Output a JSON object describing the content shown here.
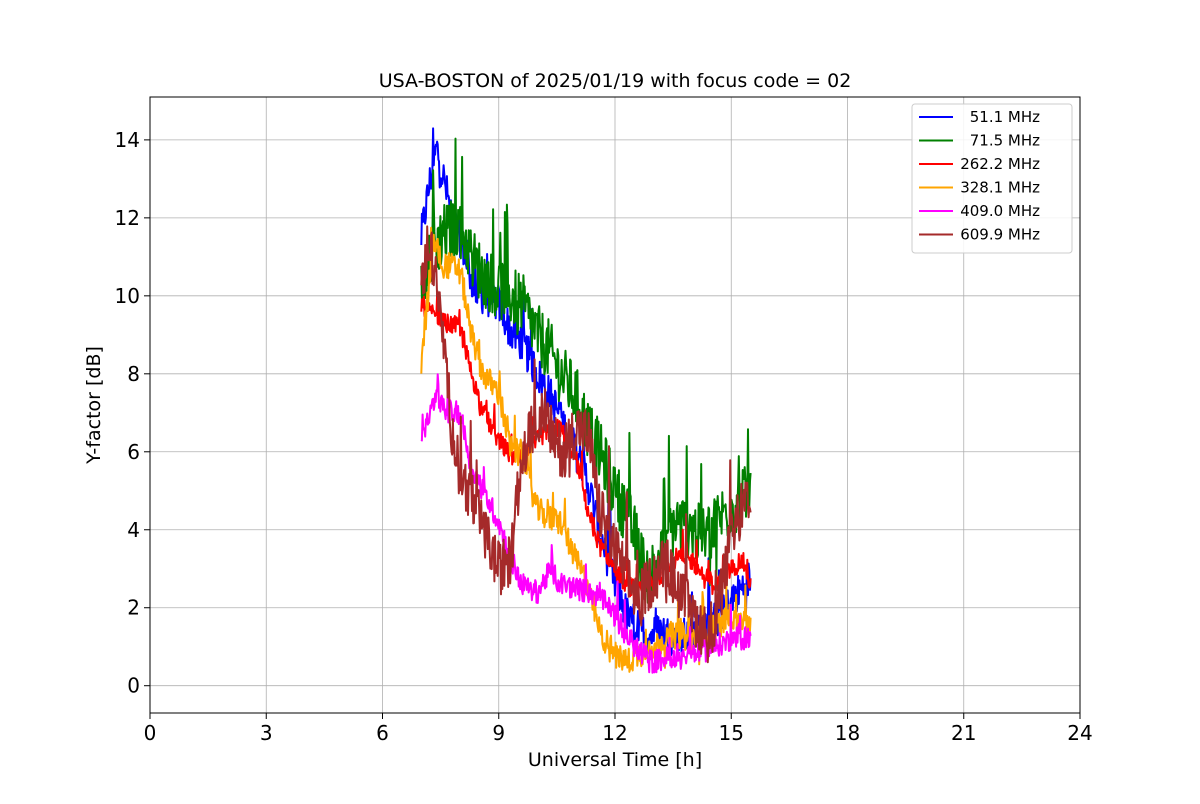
{
  "chart_data": {
    "type": "line",
    "title": "USA-BOSTON of 2025/01/19 with focus code = 02",
    "xlabel": "Universal Time [h]",
    "ylabel": "Y-factor [dB]",
    "xlim": [
      0,
      24
    ],
    "ylim": [
      -0.7,
      15.1
    ],
    "xticks": [
      0,
      3,
      6,
      9,
      12,
      15,
      18,
      21,
      24
    ],
    "yticks": [
      0,
      2,
      4,
      6,
      8,
      10,
      12,
      14
    ],
    "grid": true,
    "legend_position": "top-right",
    "series": [
      {
        "name": "51.1 MHz",
        "color": "#0000ff",
        "x": [
          7.0,
          7.2,
          7.4,
          7.6,
          7.8,
          8.0,
          8.3,
          8.6,
          9.0,
          9.3,
          9.6,
          10.0,
          10.4,
          10.8,
          11.2,
          11.6,
          12.0,
          12.4,
          12.8,
          13.2,
          13.6,
          14.0,
          14.4,
          14.8,
          15.2,
          15.5
        ],
        "y": [
          11.5,
          12.8,
          13.8,
          12.9,
          12.0,
          11.5,
          10.4,
          10.0,
          9.8,
          9.1,
          8.8,
          8.0,
          7.3,
          6.4,
          5.6,
          4.0,
          2.6,
          1.6,
          1.3,
          1.4,
          1.2,
          1.3,
          1.5,
          1.9,
          2.4,
          2.8
        ],
        "noise": 1.0
      },
      {
        "name": "71.5 MHz",
        "color": "#008000",
        "x": [
          7.0,
          7.3,
          7.6,
          8.0,
          8.3,
          8.6,
          9.0,
          9.3,
          9.6,
          10.0,
          10.3,
          10.6,
          11.0,
          11.3,
          11.6,
          12.0,
          12.3,
          12.6,
          12.8,
          13.0,
          13.3,
          13.6,
          14.0,
          14.3,
          14.6,
          15.0,
          15.3,
          15.5
        ],
        "y": [
          10.5,
          11.2,
          11.6,
          11.8,
          11.0,
          10.5,
          10.2,
          10.0,
          9.8,
          9.0,
          8.6,
          8.0,
          7.4,
          6.6,
          6.0,
          5.0,
          4.4,
          3.6,
          2.8,
          3.0,
          3.8,
          4.2,
          4.0,
          3.8,
          4.2,
          4.6,
          4.8,
          5.0
        ],
        "noise": 1.6
      },
      {
        "name": "262.2 MHz",
        "color": "#ff0000",
        "x": [
          7.0,
          7.3,
          7.6,
          8.0,
          8.3,
          8.6,
          9.0,
          9.3,
          9.6,
          10.0,
          10.3,
          10.6,
          11.0,
          11.3,
          11.6,
          12.0,
          12.3,
          12.6,
          13.0,
          13.3,
          13.6,
          14.0,
          14.3,
          14.6,
          15.0,
          15.3,
          15.5
        ],
        "y": [
          9.8,
          9.5,
          9.3,
          9.2,
          8.0,
          7.0,
          6.3,
          5.9,
          5.8,
          6.3,
          6.6,
          6.6,
          5.8,
          4.5,
          3.6,
          3.0,
          2.6,
          2.4,
          2.6,
          3.0,
          3.3,
          3.2,
          2.8,
          2.6,
          3.0,
          3.2,
          2.6
        ],
        "noise": 0.5
      },
      {
        "name": "328.1 MHz",
        "color": "#ffa500",
        "x": [
          7.0,
          7.3,
          7.6,
          8.0,
          8.3,
          8.6,
          9.0,
          9.3,
          9.6,
          10.0,
          10.3,
          10.6,
          11.0,
          11.3,
          11.6,
          12.0,
          12.3,
          12.6,
          13.0,
          13.3,
          13.6,
          14.0,
          14.3,
          14.6,
          15.0,
          15.3,
          15.5
        ],
        "y": [
          8.2,
          11.4,
          10.8,
          10.7,
          9.0,
          8.0,
          7.5,
          6.1,
          5.9,
          4.5,
          4.3,
          4.2,
          3.2,
          2.6,
          1.4,
          0.8,
          0.6,
          0.8,
          1.0,
          1.2,
          1.3,
          1.2,
          1.4,
          1.5,
          1.8,
          1.7,
          1.6
        ],
        "noise": 0.7
      },
      {
        "name": "409.0 MHz",
        "color": "#ff00ff",
        "x": [
          7.0,
          7.2,
          7.4,
          7.6,
          8.0,
          8.3,
          8.6,
          9.0,
          9.3,
          9.6,
          10.0,
          10.3,
          10.6,
          11.0,
          11.3,
          11.6,
          12.0,
          12.3,
          12.6,
          13.0,
          13.3,
          13.6,
          14.0,
          14.3,
          14.6,
          15.0,
          15.3,
          15.5
        ],
        "y": [
          6.3,
          6.8,
          7.6,
          7.0,
          7.0,
          5.6,
          5.0,
          4.2,
          3.3,
          2.6,
          2.4,
          2.9,
          2.6,
          2.5,
          2.4,
          2.3,
          1.8,
          1.3,
          0.9,
          0.6,
          0.7,
          0.8,
          0.8,
          0.9,
          1.0,
          1.2,
          1.2,
          1.3
        ],
        "noise": 0.6
      },
      {
        "name": "609.9 MHz",
        "color": "#a52a2a",
        "x": [
          7.0,
          7.2,
          7.4,
          7.6,
          7.8,
          8.0,
          8.3,
          8.6,
          9.0,
          9.3,
          9.6,
          10.0,
          10.3,
          10.6,
          11.0,
          11.3,
          11.6,
          12.0,
          12.3,
          12.6,
          13.0,
          13.3,
          13.6,
          14.0,
          14.3,
          14.6,
          15.0,
          15.3,
          15.5
        ],
        "y": [
          10.0,
          11.6,
          10.2,
          8.6,
          6.5,
          5.5,
          4.8,
          4.0,
          3.0,
          3.2,
          5.8,
          7.0,
          6.6,
          6.0,
          6.6,
          6.5,
          4.5,
          3.5,
          2.8,
          2.2,
          2.8,
          3.2,
          2.5,
          1.8,
          1.4,
          1.6,
          3.8,
          4.6,
          4.5
        ],
        "noise": 1.4
      }
    ]
  }
}
